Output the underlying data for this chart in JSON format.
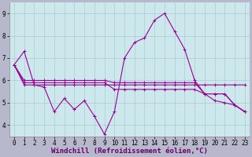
{
  "xlabel": "Windchill (Refroidissement éolien,°C)",
  "background_color": "#cce8ec",
  "grid_color": "#aacccc",
  "line_color": "#990099",
  "x_hours": [
    0,
    1,
    2,
    3,
    4,
    5,
    6,
    7,
    8,
    9,
    10,
    11,
    12,
    13,
    14,
    15,
    16,
    17,
    18,
    19,
    20,
    21,
    22,
    23
  ],
  "series": [
    [
      6.7,
      7.3,
      5.8,
      5.7,
      4.6,
      5.2,
      4.7,
      5.1,
      4.4,
      3.6,
      4.6,
      7.0,
      7.7,
      7.9,
      8.7,
      9.0,
      8.2,
      7.4,
      6.0,
      5.4,
      5.1,
      5.0,
      4.9,
      4.6
    ],
    [
      6.7,
      5.8,
      5.8,
      5.8,
      5.8,
      5.8,
      5.8,
      5.8,
      5.8,
      5.8,
      5.8,
      5.8,
      5.8,
      5.8,
      5.8,
      5.8,
      5.8,
      5.8,
      5.8,
      5.8,
      5.8,
      5.8,
      5.8,
      5.8
    ],
    [
      6.7,
      5.9,
      5.9,
      5.9,
      5.9,
      5.9,
      5.9,
      5.9,
      5.9,
      5.9,
      5.6,
      5.6,
      5.6,
      5.6,
      5.6,
      5.6,
      5.6,
      5.6,
      5.6,
      5.4,
      5.4,
      5.4,
      4.9,
      4.6
    ],
    [
      6.7,
      6.0,
      6.0,
      6.0,
      6.0,
      6.0,
      6.0,
      6.0,
      6.0,
      6.0,
      5.9,
      5.9,
      5.9,
      5.9,
      5.9,
      5.9,
      5.9,
      5.9,
      5.9,
      5.4,
      5.4,
      5.4,
      4.9,
      4.6
    ]
  ],
  "ylim": [
    3.5,
    9.5
  ],
  "yticks": [
    4,
    5,
    6,
    7,
    8,
    9
  ],
  "xlim": [
    -0.5,
    23.5
  ],
  "xticks": [
    0,
    1,
    2,
    3,
    4,
    5,
    6,
    7,
    8,
    9,
    10,
    11,
    12,
    13,
    14,
    15,
    16,
    17,
    18,
    19,
    20,
    21,
    22,
    23
  ],
  "marker": "+",
  "markersize": 3,
  "linewidth": 0.8,
  "xlabel_fontsize": 6.5,
  "tick_fontsize": 5.5,
  "fig_bg": "#b8b8cc"
}
